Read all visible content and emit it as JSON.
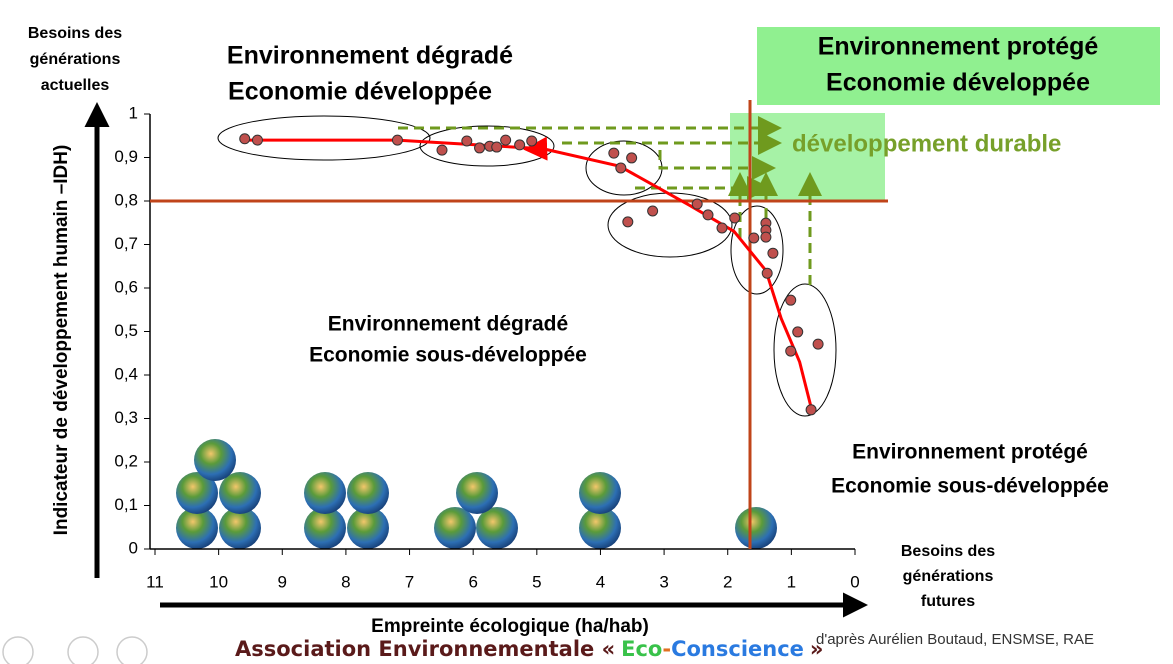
{
  "chart_data": {
    "type": "scatter",
    "y_header": [
      "Besoins des",
      "générations",
      "actuelles"
    ],
    "ylabel": "Indicateur de développement humain –IDH)",
    "xlabel": "Empreinte écologique (ha/hab)",
    "x_footer": [
      "Besoins des",
      "générations",
      "futures"
    ],
    "xlim": [
      11,
      0
    ],
    "ylim": [
      0,
      1
    ],
    "xticks": [
      11,
      10,
      9,
      8,
      7,
      6,
      5,
      4,
      3,
      2,
      1,
      0
    ],
    "yticks": [
      0,
      {
        "value": 0.1,
        "label": "0,1"
      },
      {
        "value": 0.2,
        "label": "0,2"
      },
      {
        "value": 0.3,
        "label": "0,3"
      },
      {
        "value": 0.4,
        "label": "0,4"
      },
      {
        "value": 0.5,
        "label": "0,5"
      },
      {
        "value": 0.6,
        "label": "0,6"
      },
      {
        "value": 0.7,
        "label": "0,7"
      },
      {
        "value": 0.8,
        "label": "0,8"
      },
      {
        "value": 0.9,
        "label": "0,9"
      },
      1
    ],
    "series": [
      {
        "color": "#c0504d",
        "x": [
          9.59,
          9.39,
          7.19,
          6.49,
          6.1,
          5.9,
          5.74,
          5.63,
          5.49,
          5.27,
          5.08,
          3.79,
          3.51,
          3.68,
          3.57,
          3.18,
          2.48,
          2.31,
          2.09,
          1.89,
          1.59,
          1.4,
          1.4,
          1.4,
          1.29,
          1.38,
          1.01,
          0.9,
          0.58,
          1.01,
          0.69
        ],
        "values": [
          0.943,
          0.94,
          0.94,
          0.917,
          0.938,
          0.922,
          0.926,
          0.924,
          0.94,
          0.929,
          0.938,
          0.91,
          0.899,
          0.876,
          0.752,
          0.777,
          0.793,
          0.768,
          0.738,
          0.761,
          0.715,
          0.749,
          0.733,
          0.717,
          0.68,
          0.634,
          0.572,
          0.499,
          0.471,
          0.455,
          0.32
        ]
      },
      {
        "type": "line",
        "color": "#ff0000",
        "x": [
          9.6,
          7.2,
          4.9,
          3.7,
          2.6,
          1.9,
          1.4,
          1.16,
          0.87,
          0.68
        ],
        "values": [
          0.94,
          0.94,
          0.92,
          0.88,
          0.79,
          0.73,
          0.64,
          0.53,
          0.43,
          0.32
        ]
      }
    ],
    "reference_lines": {
      "x": 1.65,
      "y": 0.8,
      "color": "#c0441a"
    },
    "quadrant_labels": {
      "top_left": [
        "Environnement dégradé",
        "Economie développée"
      ],
      "top_right": [
        "Environnement protégé",
        "Economie développée"
      ],
      "bottom_left": [
        "Environnement dégradé",
        "Economie sous-développée"
      ],
      "bottom_right": [
        "Environnement protégé",
        "Economie sous-développée"
      ]
    },
    "goal_label": "développement durable",
    "footer": {
      "prefix": "Association  Environnementale «",
      "eco": "Eco",
      "dash": "-",
      "conscience": "Conscience",
      "suffix": "»"
    },
    "credit": "d'après Aurélien Boutaud, ENSMSE, RAE"
  }
}
